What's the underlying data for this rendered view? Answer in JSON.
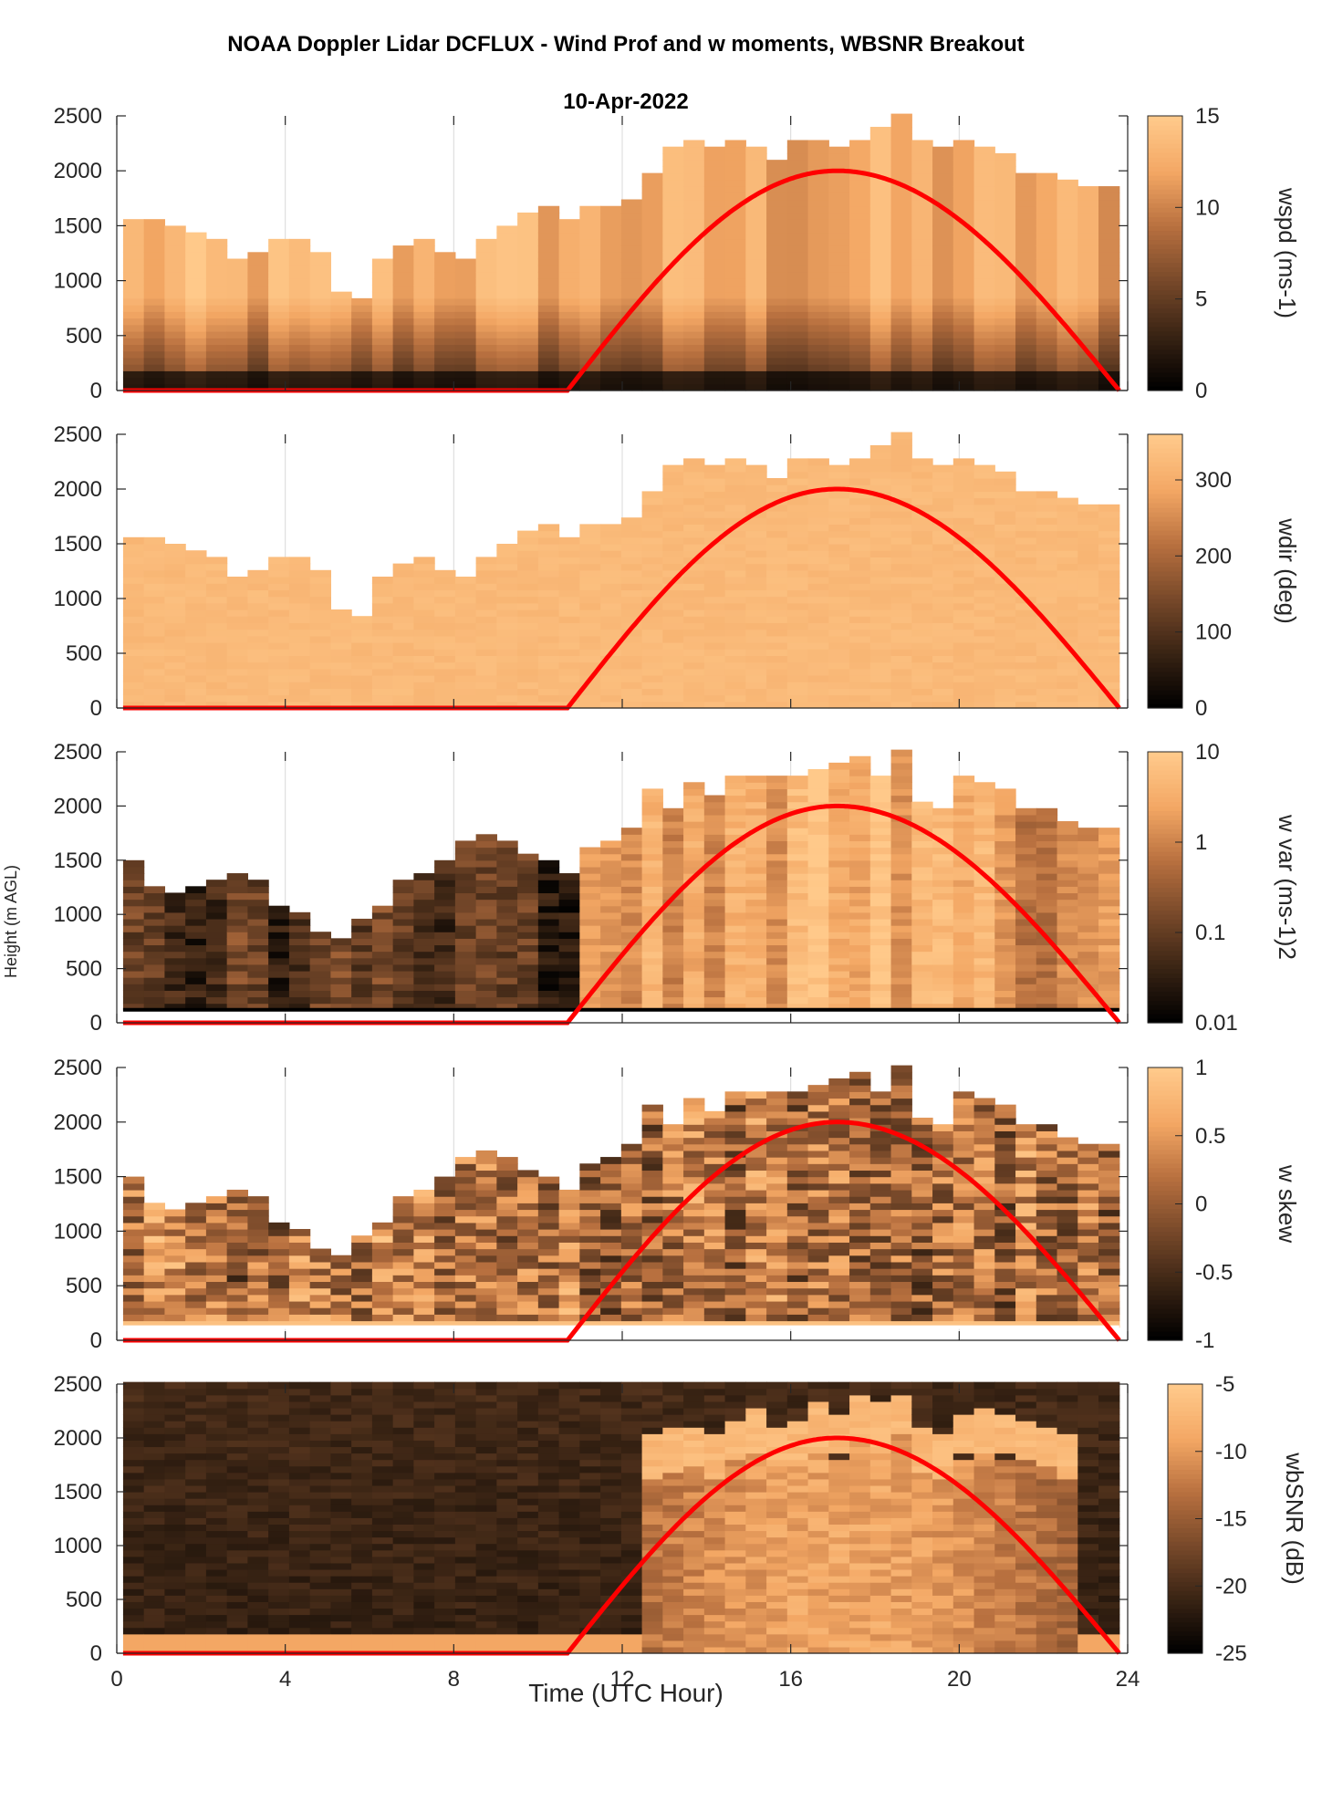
{
  "figure": {
    "title": "NOAA Doppler Lidar DCFLUX - Wind Prof and w moments, WBSNR Breakout",
    "date": "10-Apr-2022",
    "xlabel": "Time (UTC Hour)",
    "ylabel": "Height (m AGL)"
  },
  "colors": {
    "colormap": [
      "#000000",
      "#3a2414",
      "#78492a",
      "#b8703f",
      "#f3a764",
      "#ffc98a"
    ],
    "sun_curve": "#ff0000",
    "grid": "#d9d9d9",
    "axis": "#262626"
  },
  "chart_data": [
    {
      "type": "heatmap",
      "name": "wspd",
      "cbar_label": "wspd (ms-1)",
      "xlim": [
        0,
        24
      ],
      "ylim": [
        0,
        2500
      ],
      "xticks": [
        0,
        4,
        8,
        12,
        16,
        20,
        24
      ],
      "yticks": [
        0,
        500,
        1000,
        1500,
        2000,
        2500
      ],
      "clim": [
        0,
        15
      ],
      "cbar_ticks": [
        "0",
        "5",
        "10",
        "15"
      ],
      "data_top_m": [
        1580,
        1580,
        1500,
        1450,
        1350,
        1200,
        1250,
        1350,
        1400,
        1250,
        900,
        850,
        1200,
        1300,
        1400,
        1250,
        1200,
        1400,
        1500,
        1600,
        1650,
        1550,
        1650,
        1700,
        1750,
        1950,
        2200,
        2250,
        2200,
        2300,
        2200,
        2100,
        2250,
        2300,
        2200,
        2300,
        2400,
        2500,
        2300,
        2200,
        2300,
        2200,
        2150,
        2000,
        1950,
        1900,
        1850,
        1850
      ],
      "sun_elevation_curve": {
        "rise_hour": 10.7,
        "peak_hour": 17.1,
        "set_hour": 23.8,
        "peak_height_m": 2000
      }
    },
    {
      "type": "heatmap",
      "name": "wdir",
      "cbar_label": "wdir (deg)",
      "xlim": [
        0,
        24
      ],
      "ylim": [
        0,
        2500
      ],
      "yticks": [
        0,
        500,
        1000,
        1500,
        2000,
        2500
      ],
      "clim": [
        0,
        360
      ],
      "cbar_ticks": [
        "0",
        "100",
        "200",
        "300"
      ],
      "data_top_m": [
        1580,
        1580,
        1500,
        1450,
        1350,
        1200,
        1250,
        1350,
        1400,
        1250,
        900,
        850,
        1200,
        1300,
        1400,
        1250,
        1200,
        1400,
        1500,
        1600,
        1650,
        1550,
        1650,
        1700,
        1750,
        1950,
        2200,
        2250,
        2200,
        2300,
        2200,
        2100,
        2250,
        2300,
        2200,
        2300,
        2400,
        2500,
        2300,
        2200,
        2300,
        2200,
        2150,
        2000,
        1950,
        1900,
        1850,
        1850
      ],
      "sun_elevation_curve": {
        "rise_hour": 10.7,
        "peak_hour": 17.1,
        "set_hour": 23.8,
        "peak_height_m": 2000
      }
    },
    {
      "type": "heatmap",
      "name": "w var",
      "cbar_label": "w var (ms-1)2",
      "xlim": [
        0,
        24
      ],
      "ylim": [
        0,
        2500
      ],
      "yticks": [
        0,
        500,
        1000,
        1500,
        2000,
        2500
      ],
      "clim": [
        0.01,
        10
      ],
      "log_scale": true,
      "cbar_ticks": [
        "0.01",
        "0.1",
        "1",
        "10"
      ],
      "data_top_m": [
        1480,
        1250,
        1200,
        1250,
        1300,
        1400,
        1300,
        1100,
        1000,
        850,
        800,
        950,
        1100,
        1300,
        1400,
        1500,
        1650,
        1750,
        1650,
        1550,
        1500,
        1400,
        1600,
        1700,
        1800,
        2150,
        2000,
        2200,
        2100,
        2250,
        2300,
        2250,
        2300,
        2350,
        2400,
        2450,
        2300,
        2500,
        2050,
        2000,
        2250,
        2200,
        2150,
        2000,
        1950,
        1850,
        1800,
        1800
      ],
      "min_height_m": 120,
      "sun_elevation_curve": {
        "rise_hour": 10.7,
        "peak_hour": 17.1,
        "set_hour": 23.8,
        "peak_height_m": 2000
      }
    },
    {
      "type": "heatmap",
      "name": "w skew",
      "cbar_label": "w skew",
      "xlim": [
        0,
        24
      ],
      "ylim": [
        0,
        2500
      ],
      "yticks": [
        0,
        500,
        1000,
        1500,
        2000,
        2500
      ],
      "clim": [
        -1,
        1
      ],
      "cbar_ticks": [
        "-1",
        "-0.5",
        "0",
        "0.5",
        "1"
      ],
      "data_top_m": [
        1480,
        1250,
        1200,
        1250,
        1300,
        1400,
        1300,
        1100,
        1000,
        850,
        800,
        950,
        1100,
        1300,
        1400,
        1500,
        1650,
        1750,
        1650,
        1550,
        1500,
        1400,
        1600,
        1700,
        1800,
        2150,
        2000,
        2200,
        2100,
        2250,
        2300,
        2250,
        2300,
        2350,
        2400,
        2450,
        2300,
        2500,
        2050,
        2000,
        2250,
        2200,
        2150,
        2000,
        1950,
        1850,
        1800,
        1800
      ],
      "min_height_m": 120,
      "sun_elevation_curve": {
        "rise_hour": 10.7,
        "peak_hour": 17.1,
        "set_hour": 23.8,
        "peak_height_m": 2000
      }
    },
    {
      "type": "heatmap",
      "name": "wbSNR",
      "cbar_label": "wbSNR (dB)",
      "xlim": [
        0,
        24
      ],
      "ylim": [
        0,
        2500
      ],
      "xticks": [
        0,
        4,
        8,
        12,
        16,
        20,
        24
      ],
      "yticks": [
        0,
        500,
        1000,
        1500,
        2000,
        2500
      ],
      "clim": [
        -25,
        -5
      ],
      "cbar_ticks": [
        "-25",
        "-20",
        "-15",
        "-10",
        "-5"
      ],
      "bright_layer_top_m": [
        150,
        150,
        150,
        150,
        150,
        150,
        150,
        150,
        150,
        150,
        150,
        150,
        150,
        150,
        150,
        150,
        150,
        150,
        150,
        150,
        150,
        150,
        150,
        150,
        150,
        2000,
        2050,
        2100,
        2000,
        2150,
        2250,
        2100,
        2150,
        2300,
        2200,
        2350,
        2300,
        2400,
        2050,
        2000,
        2200,
        2250,
        2200,
        2150,
        2100,
        2000,
        150,
        150
      ],
      "sun_elevation_curve": {
        "rise_hour": 10.7,
        "peak_hour": 17.1,
        "set_hour": 23.8,
        "peak_height_m": 2000
      }
    }
  ]
}
